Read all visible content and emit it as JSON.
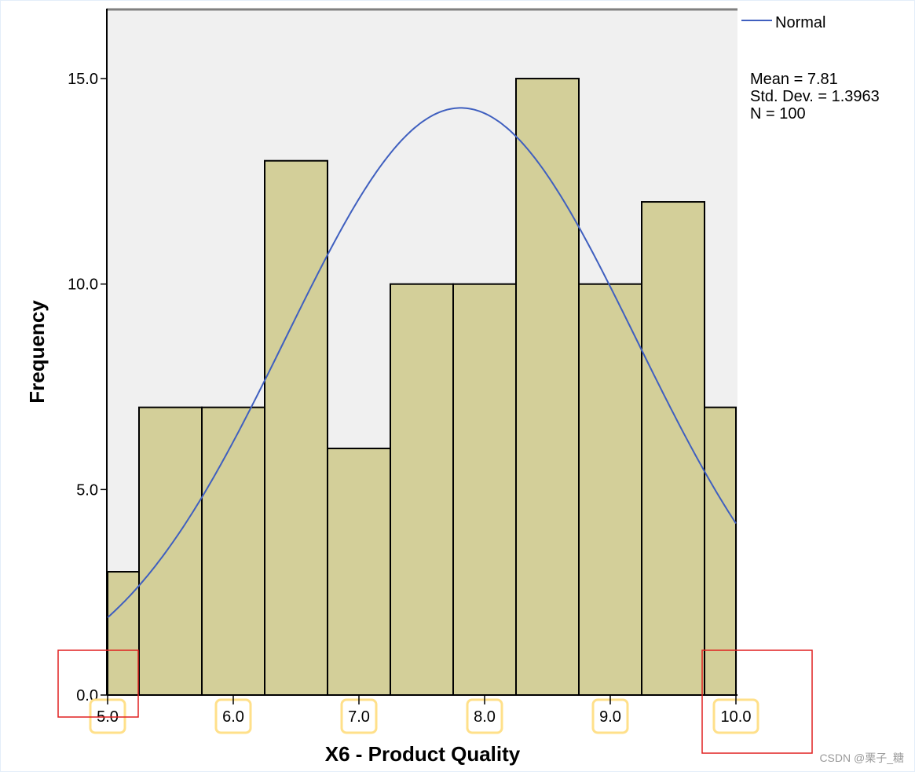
{
  "chart_data": {
    "type": "bar",
    "subtype": "histogram_with_normal_curve",
    "title": "",
    "xlabel": "X6 - Product Quality",
    "ylabel": "Frequency",
    "xlim": [
      5.0,
      10.0
    ],
    "ylim": [
      0,
      17.0
    ],
    "x_ticks": [
      "5.0",
      "6.0",
      "7.0",
      "8.0",
      "9.0",
      "10.0"
    ],
    "x_tick_values": [
      5.0,
      6.0,
      7.0,
      8.0,
      9.0,
      10.0
    ],
    "y_ticks": [
      "0.0",
      "5.0",
      "10.0",
      "15.0"
    ],
    "y_tick_values": [
      0,
      5,
      10,
      15
    ],
    "grid": false,
    "bins": [
      {
        "x0": 5.0,
        "x1": 5.25,
        "count": 3
      },
      {
        "x0": 5.25,
        "x1": 5.75,
        "count": 7
      },
      {
        "x0": 5.75,
        "x1": 6.25,
        "count": 7
      },
      {
        "x0": 6.25,
        "x1": 6.75,
        "count": 13
      },
      {
        "x0": 6.75,
        "x1": 7.25,
        "count": 6
      },
      {
        "x0": 7.25,
        "x1": 7.75,
        "count": 10
      },
      {
        "x0": 7.75,
        "x1": 8.25,
        "count": 10
      },
      {
        "x0": 8.25,
        "x1": 8.75,
        "count": 15
      },
      {
        "x0": 8.75,
        "x1": 9.25,
        "count": 10
      },
      {
        "x0": 9.25,
        "x1": 9.75,
        "count": 12
      },
      {
        "x0": 9.75,
        "x1": 10.0,
        "count": 7
      }
    ],
    "categories": [
      "5.0-5.25",
      "5.25-5.75",
      "5.75-6.25",
      "6.25-6.75",
      "6.75-7.25",
      "7.25-7.75",
      "7.75-8.25",
      "8.25-8.75",
      "8.75-9.25",
      "9.25-9.75",
      "9.75-10.0"
    ],
    "values": [
      3,
      7,
      7,
      13,
      6,
      10,
      10,
      15,
      10,
      12,
      7
    ],
    "normal_curve": {
      "mean": 7.81,
      "std": 1.3963,
      "n": 100,
      "bin_width": 0.5
    },
    "legend": {
      "entries": [
        "Normal"
      ],
      "position": "top-right"
    },
    "stats": [
      "Mean = 7.81",
      "Std. Dev. = 1.3963",
      "N = 100"
    ],
    "colors": {
      "bar_fill": "#d3cf99",
      "bar_stroke": "#000000",
      "plot_bg": "#f0f0f0",
      "curve": "#3f5fbf"
    },
    "annotations": [
      {
        "type": "highlight-box",
        "color": "#e02020",
        "around": "0.0 / 5.0 corner"
      },
      {
        "type": "highlight-box",
        "color": "#e02020",
        "around": "10.0 corner"
      },
      {
        "type": "tick-label-highlight",
        "color": "#ffe08a",
        "labels": [
          "5.0",
          "6.0",
          "7.0",
          "8.0",
          "9.0",
          "10.0"
        ]
      }
    ]
  },
  "watermark": "CSDN @栗子_糖"
}
